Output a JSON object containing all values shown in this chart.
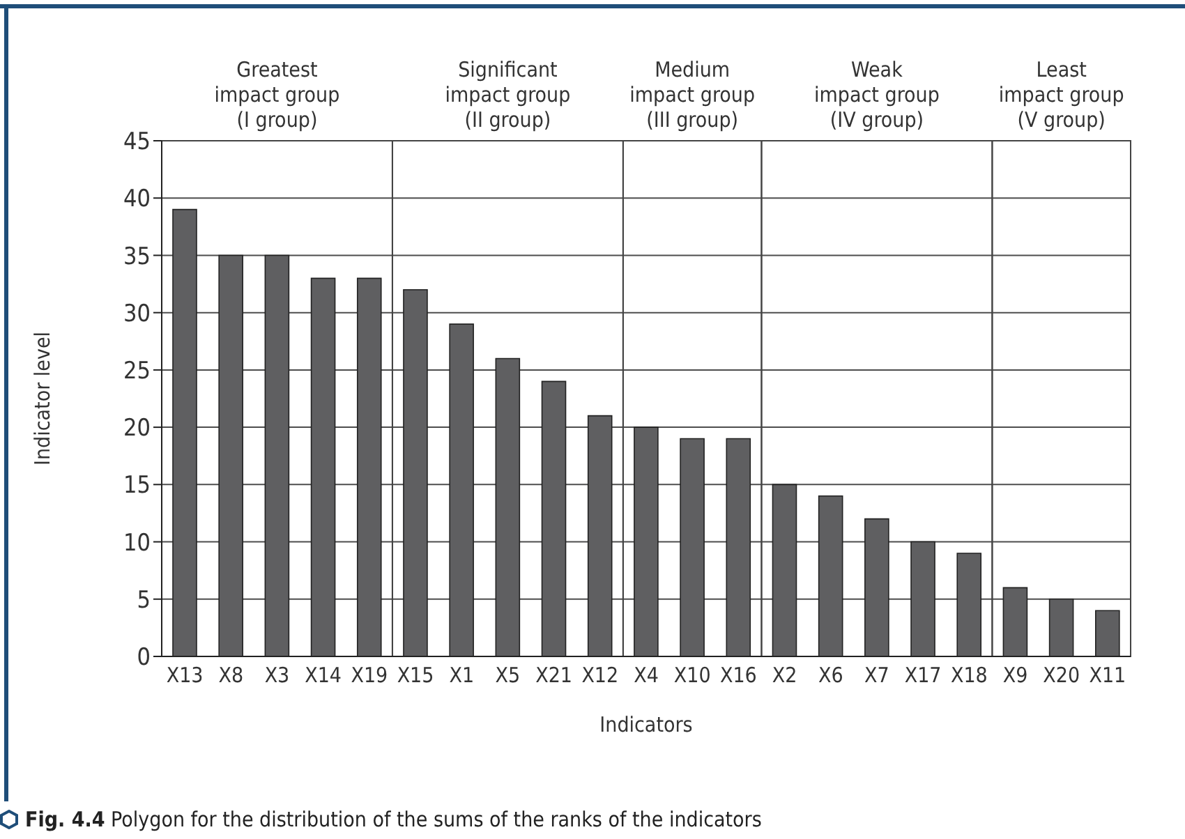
{
  "chart_data": {
    "type": "bar",
    "xlabel": "Indicators",
    "ylabel": "Indicator level",
    "categories": [
      "X13",
      "X8",
      "X3",
      "X14",
      "X19",
      "X15",
      "X1",
      "X5",
      "X21",
      "X12",
      "X4",
      "X10",
      "X16",
      "X2",
      "X6",
      "X7",
      "X17",
      "X18",
      "X9",
      "X20",
      "X11"
    ],
    "values": [
      39,
      35,
      35,
      33,
      33,
      32,
      29,
      26,
      24,
      21,
      20,
      19,
      19,
      15,
      14,
      12,
      10,
      9,
      6,
      5,
      4
    ],
    "color": "#5f5f61",
    "ylim": [
      0,
      45
    ],
    "yticks": [
      0,
      5,
      10,
      15,
      20,
      25,
      30,
      35,
      40,
      45
    ],
    "grid": "y",
    "legend": false,
    "bands": [
      {
        "axis": "x",
        "from": "X13",
        "to": "X19",
        "label": "Greatest impact group (I group)",
        "color": "#ffffff"
      },
      {
        "axis": "x",
        "from": "X15",
        "to": "X12",
        "label": "Significant impact group (II group)",
        "color": "#ffffff"
      },
      {
        "axis": "x",
        "from": "X4",
        "to": "X16",
        "label": "Medium impact group (III group)",
        "color": "#ffffff"
      },
      {
        "axis": "x",
        "from": "X2",
        "to": "X18",
        "label": "Weak impact group (IV group)",
        "color": "#ffffff"
      },
      {
        "axis": "x",
        "from": "X9",
        "to": "X11",
        "label": "Least impact group (V group)",
        "color": "#ffffff"
      }
    ],
    "annotations": [
      "Fig. 4.4 Polygon for the distribution of the sums of the ranks of the indicators"
    ]
  }
}
